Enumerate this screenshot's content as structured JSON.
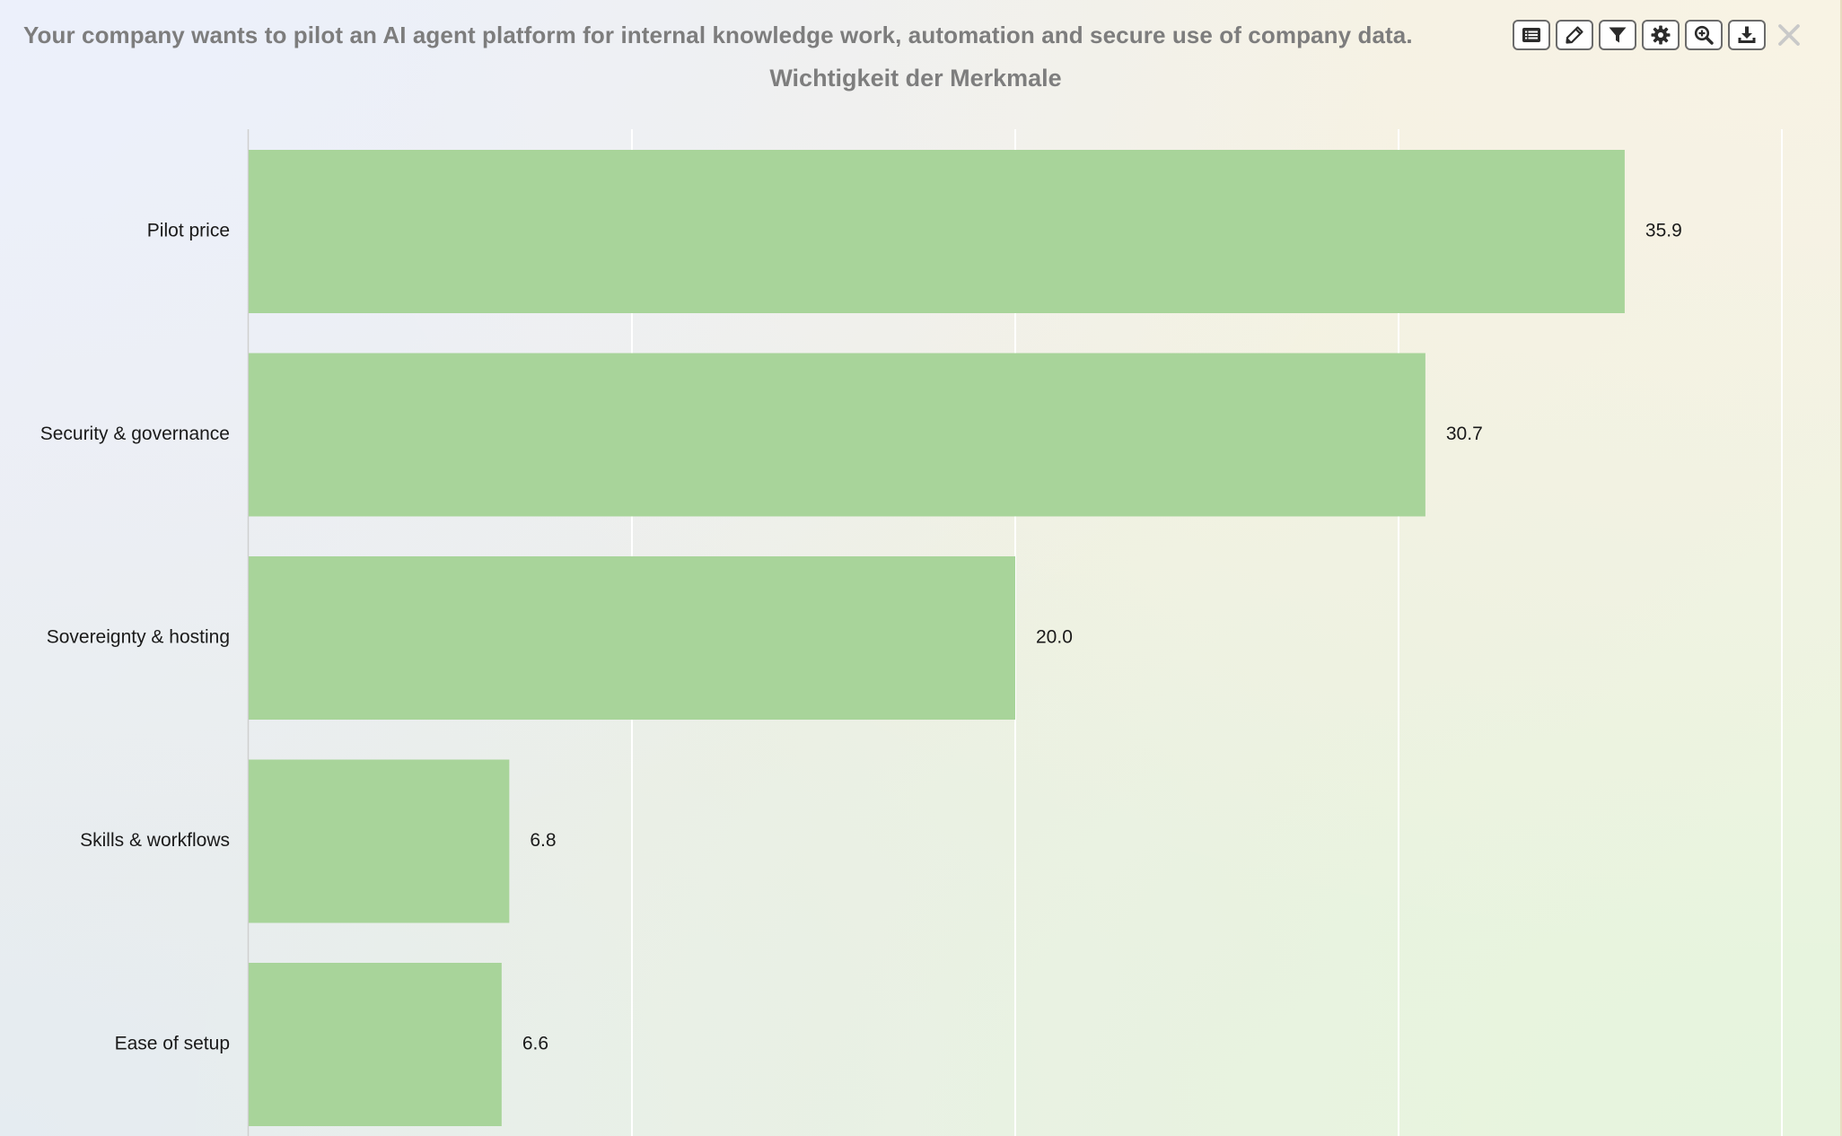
{
  "header": {
    "question": "Your company wants to pilot an AI agent platform for internal knowledge work, automation and secure use of company data.",
    "chart_title": "Wichtigkeit der Merkmale"
  },
  "toolbar": {
    "buttons": [
      {
        "name": "list-view-button",
        "icon": "list-icon"
      },
      {
        "name": "edit-button",
        "icon": "pencil-icon"
      },
      {
        "name": "filter-button",
        "icon": "filter-icon"
      },
      {
        "name": "settings-button",
        "icon": "gear-icon"
      },
      {
        "name": "zoom-button",
        "icon": "zoom-in-icon"
      },
      {
        "name": "download-button",
        "icon": "download-icon"
      }
    ],
    "close_icon": "close-icon"
  },
  "colors": {
    "bar": "#a8d49a",
    "grid": "#ffffff",
    "axis": "#cfcfcf",
    "text": "#1a1a1a",
    "title": "#7e7e7e"
  },
  "chart_data": {
    "type": "bar",
    "orientation": "horizontal",
    "title": "Wichtigkeit der Merkmale",
    "xlabel": "",
    "ylabel": "",
    "categories": [
      "Pilot price",
      "Security & governance",
      "Sovereignty & hosting",
      "Skills & workflows",
      "Ease of setup"
    ],
    "values": [
      35.9,
      30.7,
      20.0,
      6.8,
      6.6
    ],
    "value_labels": [
      "35.9",
      "30.7",
      "20.0",
      "6.8",
      "6.6"
    ],
    "xlim": [
      0,
      40
    ],
    "grid": true,
    "grid_interval": 10,
    "legend": "none"
  }
}
